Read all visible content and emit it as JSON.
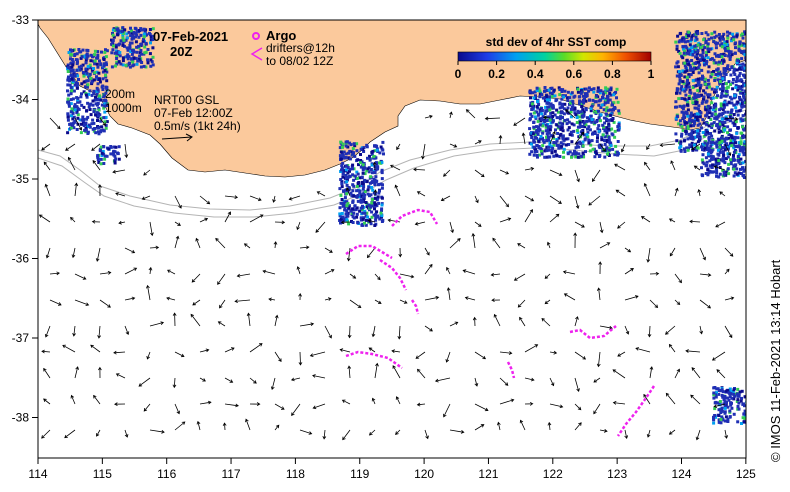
{
  "title": {
    "date": "07-Feb-2021",
    "hour": "20Z"
  },
  "legend": {
    "argo_label": "Argo",
    "drifters_line1": "drifters@12h",
    "drifters_line2": "to 08/02 12Z",
    "colorbar_title": "std dev of 4hr SST comp",
    "colorbar_ticks": [
      "0",
      "0.2",
      "0.4",
      "0.6",
      "0.8",
      "1"
    ]
  },
  "isobaths": {
    "line1": "200m",
    "line2": "1000m"
  },
  "current_info": {
    "line1": "NRT00 GSL",
    "line2": "07-Feb 12:00Z",
    "line3": "0.5m/s (1kt 24h)"
  },
  "credit": "© IMOS 11-Feb-2021 13:14 Hobart",
  "axes": {
    "x_ticks": [
      "114",
      "115",
      "116",
      "117",
      "118",
      "119",
      "120",
      "121",
      "122",
      "123",
      "124",
      "125"
    ],
    "y_ticks": [
      "-33",
      "-34",
      "-35",
      "-36",
      "-37",
      "-38"
    ]
  },
  "colors": {
    "land": "#fbc99c",
    "isobath": "#b4b4b4",
    "drifter": "#ee22ee",
    "sst_cool": "#1f2fb4",
    "sst_warm": "#33cc55"
  }
}
